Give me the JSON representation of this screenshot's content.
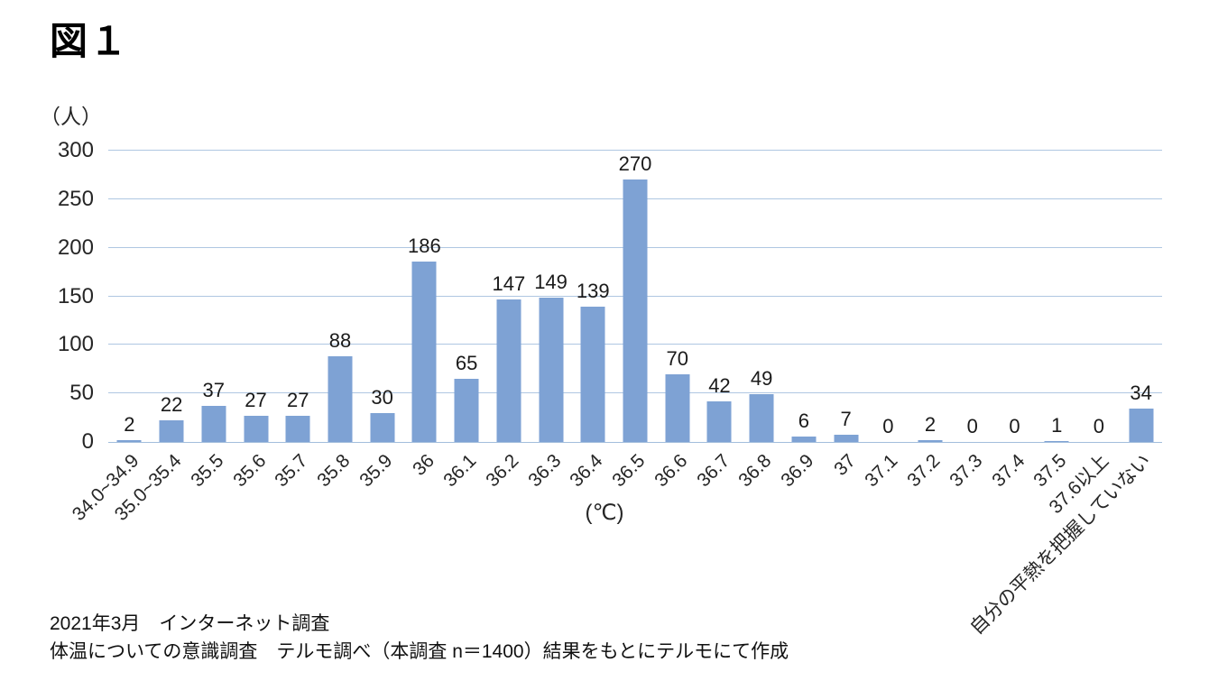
{
  "figure_label": "図１",
  "chart_data": {
    "type": "bar",
    "title": "図１",
    "y_unit_label": "（人）",
    "xlabel": "(℃)",
    "ylabel": "（人）",
    "categories": [
      "34.0~34.9",
      "35.0~35.4",
      "35.5",
      "35.6",
      "35.7",
      "35.8",
      "35.9",
      "36",
      "36.1",
      "36.2",
      "36.3",
      "36.4",
      "36.5",
      "36.6",
      "36.7",
      "36.8",
      "36.9",
      "37",
      "37.1",
      "37.2",
      "37.3",
      "37.4",
      "37.5",
      "37.6以上",
      "自分の平熱を把握していない"
    ],
    "values": [
      2,
      22,
      37,
      27,
      27,
      88,
      30,
      186,
      65,
      147,
      149,
      139,
      270,
      70,
      42,
      49,
      6,
      7,
      0,
      2,
      0,
      0,
      1,
      0,
      34
    ],
    "yticks": [
      0,
      50,
      100,
      150,
      200,
      250,
      300
    ],
    "ylim": [
      0,
      300
    ],
    "grid": true,
    "legend_position": "none",
    "bar_color": "#7EA2D4",
    "gridline_color": "#AFC7E2",
    "axis_line_color": "#A3BEDC",
    "text_color": "#262626"
  },
  "footer": {
    "line1": "2021年3月　インターネット調査",
    "line2": "体温についての意識調査　テルモ調べ（本調査 n＝1400）結果をもとにテルモにて作成"
  }
}
